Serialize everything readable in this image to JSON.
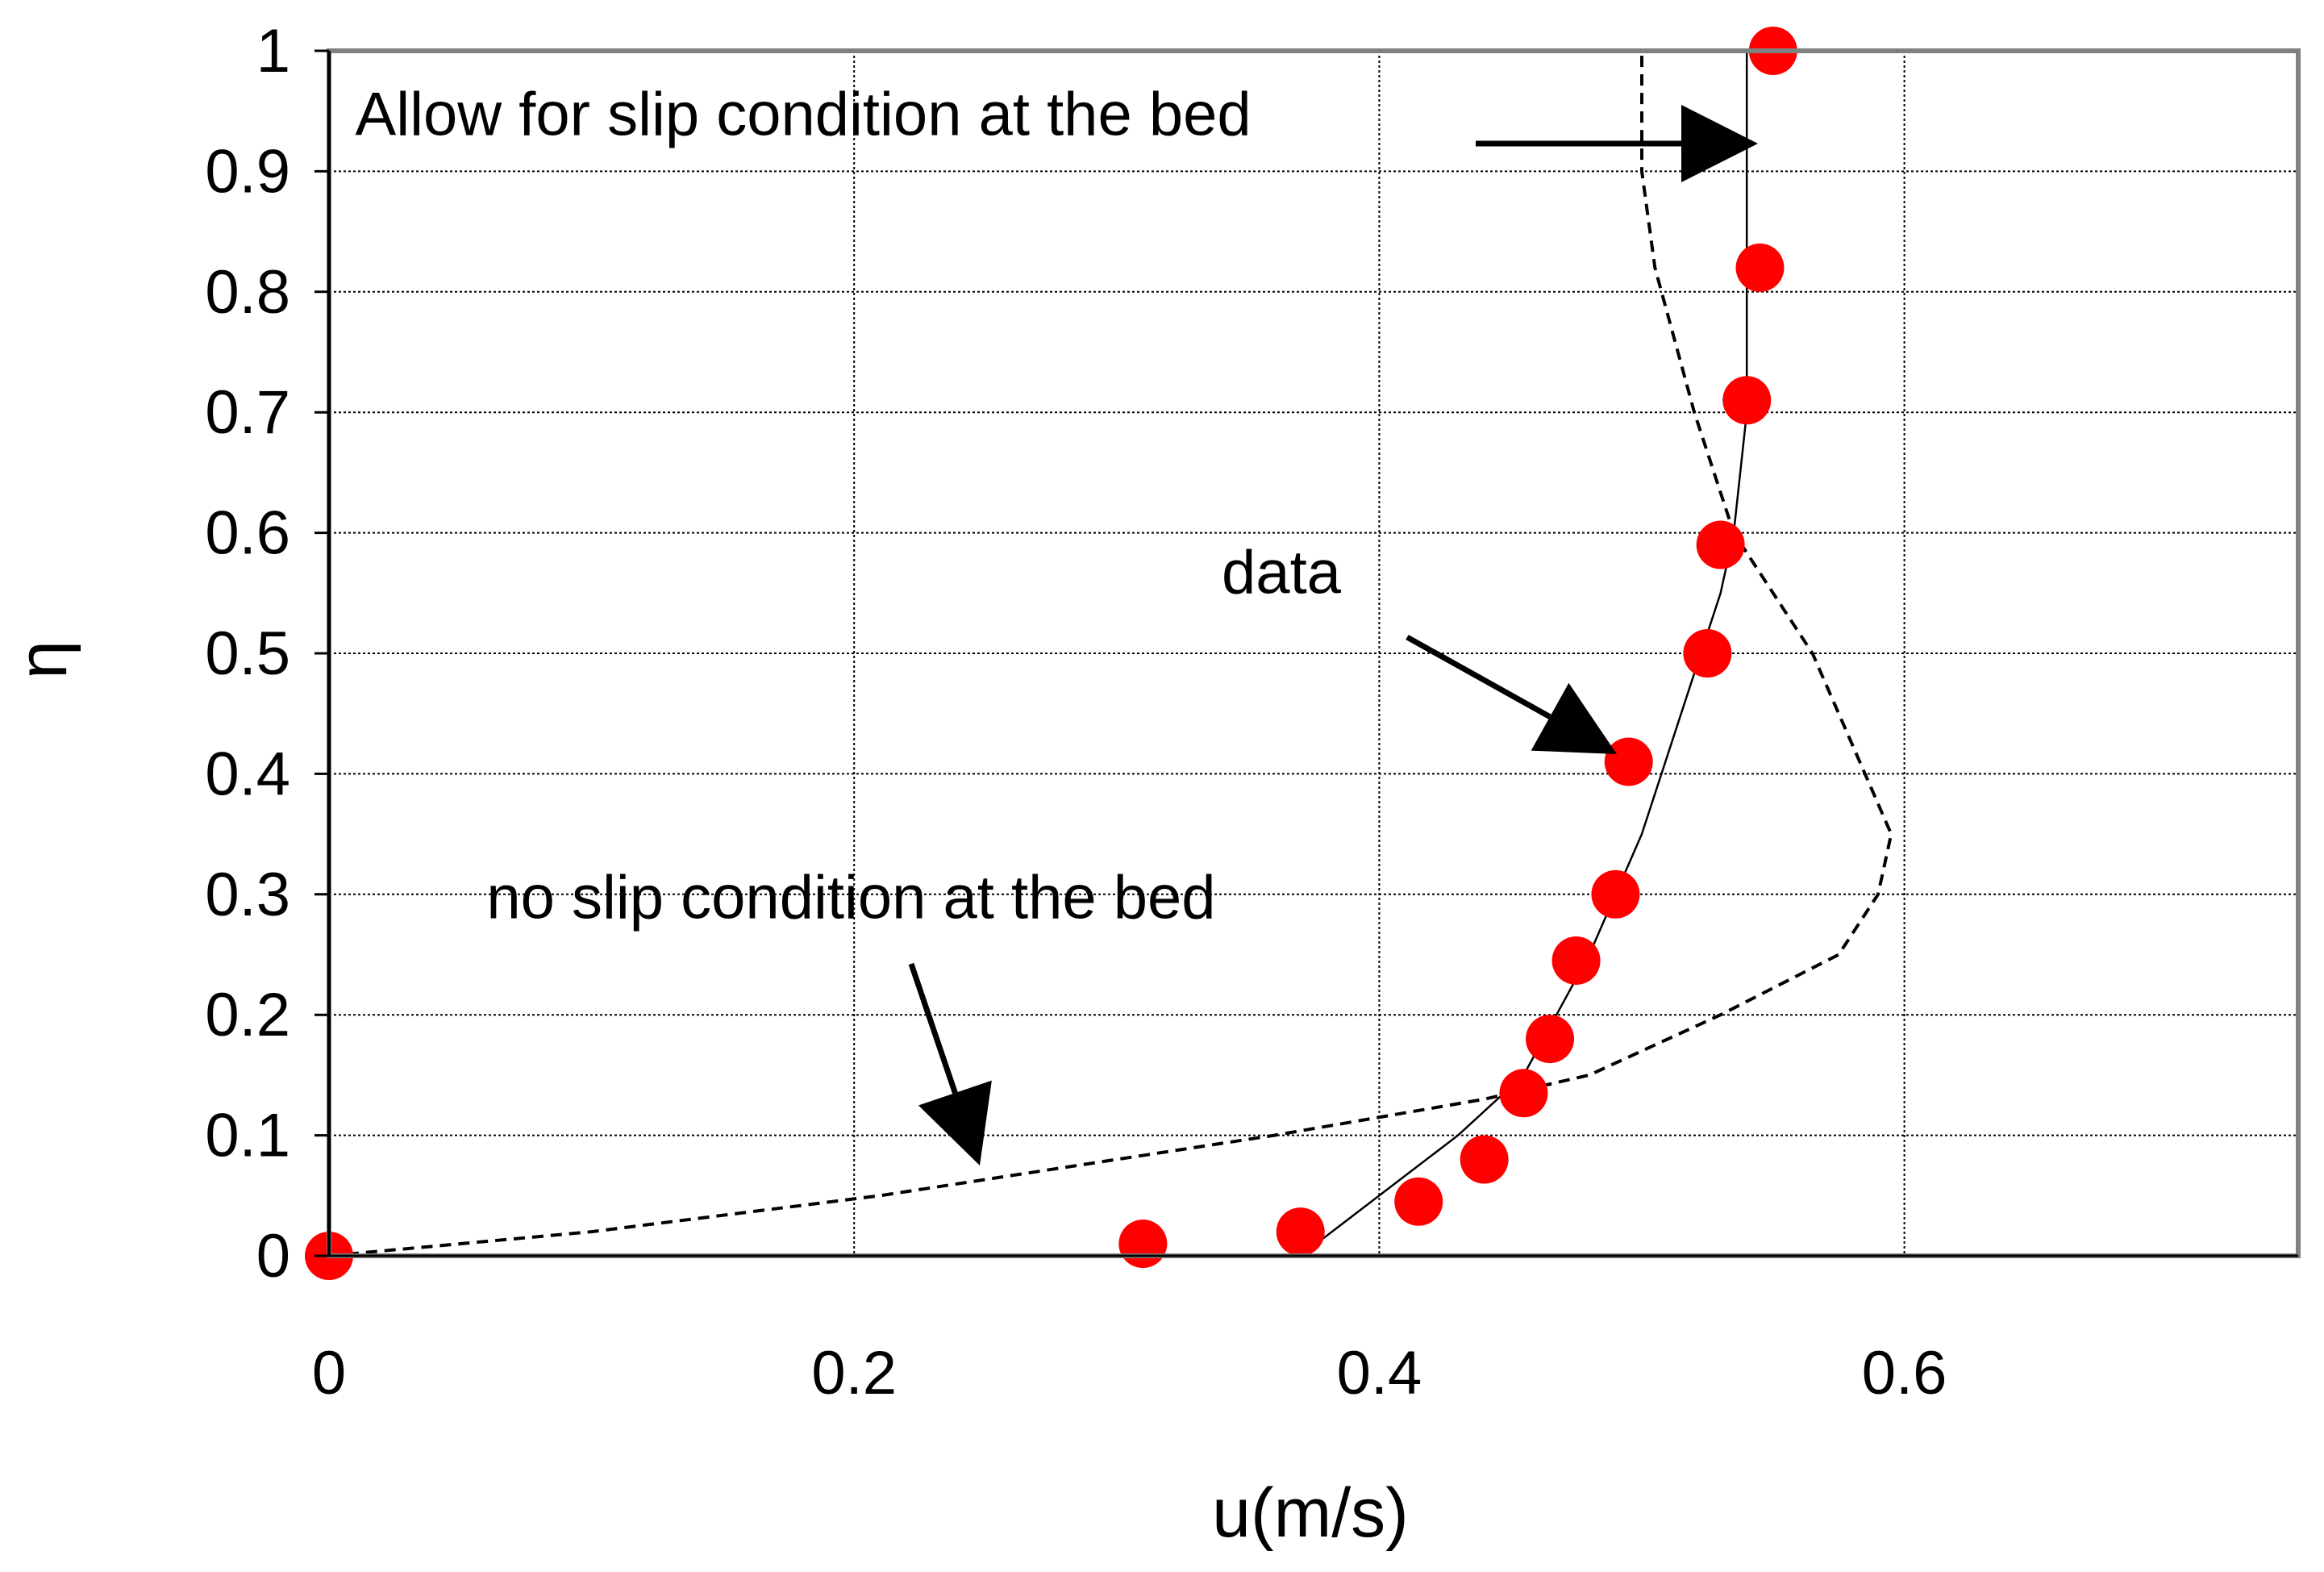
{
  "chart_data": {
    "type": "line",
    "title": "",
    "xlabel": "u(m/s)",
    "ylabel": "η",
    "xlim": [
      0,
      0.75
    ],
    "ylim": [
      0,
      1
    ],
    "x_ticks": [
      "0",
      "0.2",
      "0.4",
      "0.6"
    ],
    "y_ticks": [
      "0",
      "0.1",
      "0.2",
      "0.3",
      "0.4",
      "0.5",
      "0.6",
      "0.7",
      "0.8",
      "0.9",
      "1"
    ],
    "grid": true,
    "series": [
      {
        "style": "scatter",
        "color": "#ff0000",
        "x": [
          0.0,
          0.31,
          0.37,
          0.415,
          0.44,
          0.455,
          0.465,
          0.475,
          0.49,
          0.495,
          0.525,
          0.53,
          0.54,
          0.545,
          0.55
        ],
        "y": [
          0.0,
          0.01,
          0.02,
          0.045,
          0.08,
          0.135,
          0.18,
          0.245,
          0.3,
          0.41,
          0.5,
          0.59,
          0.71,
          0.82,
          1.0
        ]
      },
      {
        "style": "solid",
        "color": "#000000",
        "x": [
          0.37,
          0.4,
          0.43,
          0.455,
          0.48,
          0.5,
          0.515,
          0.53,
          0.535,
          0.54,
          0.54,
          0.54
        ],
        "y": [
          0.0,
          0.05,
          0.1,
          0.15,
          0.25,
          0.35,
          0.45,
          0.55,
          0.6,
          0.7,
          0.75,
          1.0
        ]
      },
      {
        "style": "dashed",
        "color": "#000000",
        "x": [
          0.0,
          0.1,
          0.21,
          0.36,
          0.44,
          0.48,
          0.53,
          0.575,
          0.59,
          0.595,
          0.585,
          0.565,
          0.535,
          0.52,
          0.505,
          0.5,
          0.5
        ],
        "y": [
          0.0,
          0.02,
          0.05,
          0.1,
          0.13,
          0.15,
          0.2,
          0.25,
          0.3,
          0.35,
          0.4,
          0.5,
          0.6,
          0.7,
          0.82,
          0.9,
          1.0
        ]
      }
    ],
    "annotations": [
      {
        "text": "Allow for slip condition at the bed",
        "x": 0.01,
        "y": 0.93,
        "arrow_x": 0.54,
        "arrow_y": 0.92
      },
      {
        "text": "data",
        "x": 0.34,
        "y": 0.55,
        "arrow_x": 0.49,
        "arrow_y": 0.415
      },
      {
        "text": "no slip condition at the bed",
        "x": 0.06,
        "y": 0.28,
        "arrow_x": 0.25,
        "arrow_y": 0.1
      }
    ]
  }
}
